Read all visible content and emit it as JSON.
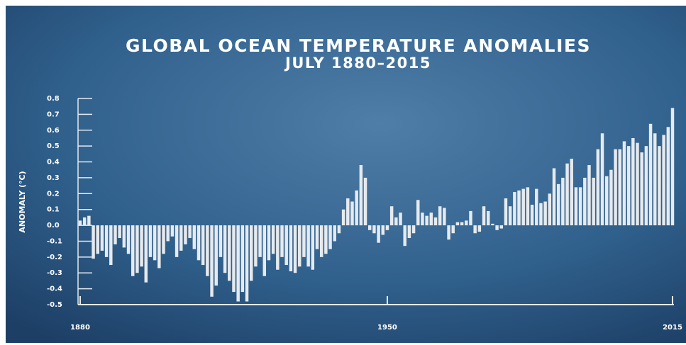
{
  "chart_data": {
    "type": "bar",
    "title": "GLOBAL OCEAN TEMPERATURE ANOMALIES",
    "subtitle": "JULY 1880–2015",
    "y_label": "ANOMALY (°C)",
    "color": "#e6eaee",
    "x": [
      1880,
      1881,
      1882,
      1883,
      1884,
      1885,
      1886,
      1887,
      1888,
      1889,
      1890,
      1891,
      1892,
      1893,
      1894,
      1895,
      1896,
      1897,
      1898,
      1899,
      1900,
      1901,
      1902,
      1903,
      1904,
      1905,
      1906,
      1907,
      1908,
      1909,
      1910,
      1911,
      1912,
      1913,
      1914,
      1915,
      1916,
      1917,
      1918,
      1919,
      1920,
      1921,
      1922,
      1923,
      1924,
      1925,
      1926,
      1927,
      1928,
      1929,
      1930,
      1931,
      1932,
      1933,
      1934,
      1935,
      1936,
      1937,
      1938,
      1939,
      1940,
      1941,
      1942,
      1943,
      1944,
      1945,
      1946,
      1947,
      1948,
      1949,
      1950,
      1951,
      1952,
      1953,
      1954,
      1955,
      1956,
      1957,
      1958,
      1959,
      1960,
      1961,
      1962,
      1963,
      1964,
      1965,
      1966,
      1967,
      1968,
      1969,
      1970,
      1971,
      1972,
      1973,
      1974,
      1975,
      1976,
      1977,
      1978,
      1979,
      1980,
      1981,
      1982,
      1983,
      1984,
      1985,
      1986,
      1987,
      1988,
      1989,
      1990,
      1991,
      1992,
      1993,
      1994,
      1995,
      1996,
      1997,
      1998,
      1999,
      2000,
      2001,
      2002,
      2003,
      2004,
      2005,
      2006,
      2007,
      2008,
      2009,
      2010,
      2011,
      2012,
      2013,
      2014,
      2015
    ],
    "values": [
      0.03,
      0.05,
      0.06,
      -0.21,
      -0.18,
      -0.16,
      -0.2,
      -0.25,
      -0.12,
      -0.08,
      -0.14,
      -0.18,
      -0.32,
      -0.3,
      -0.26,
      -0.36,
      -0.2,
      -0.22,
      -0.27,
      -0.18,
      -0.1,
      -0.07,
      -0.2,
      -0.16,
      -0.12,
      -0.08,
      -0.15,
      -0.22,
      -0.25,
      -0.32,
      -0.45,
      -0.38,
      -0.2,
      -0.3,
      -0.35,
      -0.42,
      -0.48,
      -0.42,
      -0.48,
      -0.35,
      -0.26,
      -0.2,
      -0.32,
      -0.22,
      -0.18,
      -0.28,
      -0.2,
      -0.25,
      -0.29,
      -0.3,
      -0.26,
      -0.2,
      -0.26,
      -0.28,
      -0.15,
      -0.2,
      -0.18,
      -0.15,
      -0.1,
      -0.05,
      0.1,
      0.17,
      0.15,
      0.22,
      0.38,
      0.3,
      -0.03,
      -0.05,
      -0.11,
      -0.06,
      -0.03,
      0.12,
      0.05,
      0.08,
      -0.13,
      -0.08,
      -0.05,
      0.16,
      0.08,
      0.06,
      0.08,
      0.05,
      0.12,
      0.11,
      -0.09,
      -0.05,
      0.02,
      0.02,
      0.03,
      0.09,
      -0.05,
      -0.04,
      0.12,
      0.09,
      0.01,
      -0.03,
      -0.02,
      0.17,
      0.12,
      0.21,
      0.22,
      0.23,
      0.24,
      0.13,
      0.23,
      0.14,
      0.15,
      0.2,
      0.36,
      0.26,
      0.3,
      0.39,
      0.42,
      0.24,
      0.24,
      0.3,
      0.38,
      0.3,
      0.48,
      0.58,
      0.31,
      0.35,
      0.48,
      0.48,
      0.53,
      0.5,
      0.55,
      0.52,
      0.46,
      0.5,
      0.64,
      0.58,
      0.5,
      0.57,
      0.62,
      0.74
    ],
    "xlim": [
      1880,
      2015
    ],
    "xticks": [
      1880,
      1950,
      2015
    ],
    "ylim": [
      -0.5,
      0.8
    ],
    "yticks": [
      0.8,
      0.7,
      0.6,
      0.5,
      0.4,
      0.3,
      0.2,
      0.1,
      {
        "value": 0,
        "label": "0.0"
      },
      -0.1,
      -0.2,
      -0.3,
      -0.4,
      -0.5
    ]
  }
}
